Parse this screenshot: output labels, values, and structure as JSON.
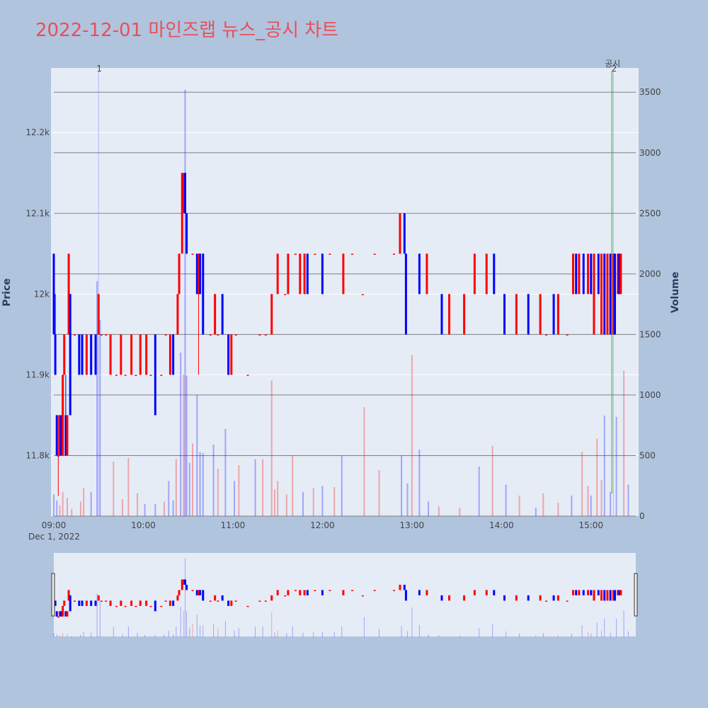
{
  "title": "2022-12-01 마인즈랩 뉴스_공시 차트",
  "colors": {
    "up": "#ff0000",
    "down": "#0000ff",
    "background": "#b0c4de",
    "plot_bg": "#e5ecf6",
    "title": "#e8505b",
    "disclosure_line": "#2ca02c"
  },
  "chart_data": {
    "type": "candlestick",
    "title": "2022-12-01 마인즈랩 뉴스_공시 차트",
    "xlabel": "",
    "ylabel": "Price",
    "y2label": "Volume",
    "x_range": [
      "09:00",
      "15:30"
    ],
    "x_ticks": [
      "09:00",
      "10:00",
      "11:00",
      "12:00",
      "13:00",
      "14:00",
      "15:00"
    ],
    "x_date_label": "Dec 1, 2022",
    "price_ticks": [
      "11.8k",
      "11.9k",
      "12k",
      "12.1k",
      "12.2k"
    ],
    "price_range": [
      11725,
      12280
    ],
    "volume_ticks": [
      "0",
      "500",
      "1000",
      "1500",
      "2000",
      "2500",
      "3000",
      "3500"
    ],
    "volume_range": [
      0,
      3700
    ],
    "annotations": [
      {
        "label": "1",
        "time": "09:30"
      },
      {
        "label": "2",
        "time": "15:15"
      },
      {
        "label": "공시",
        "time": "15:14"
      }
    ],
    "candles": [
      [
        "09:00",
        12050,
        12050,
        11950,
        11950
      ],
      [
        "09:01",
        11950,
        12000,
        11900,
        11900
      ],
      [
        "09:02",
        11850,
        11850,
        11800,
        11800
      ],
      [
        "09:03",
        11800,
        11850,
        11750,
        11800
      ],
      [
        "09:04",
        11800,
        11850,
        11800,
        11850
      ],
      [
        "09:05",
        11850,
        11850,
        11800,
        11800
      ],
      [
        "09:06",
        11800,
        11900,
        11800,
        11900
      ],
      [
        "09:07",
        11900,
        11950,
        11900,
        11950
      ],
      [
        "09:08",
        11850,
        11900,
        11800,
        11800
      ],
      [
        "09:09",
        11800,
        11850,
        11800,
        11850
      ],
      [
        "09:10",
        11950,
        12050,
        11950,
        12050
      ],
      [
        "09:11",
        12000,
        12000,
        11850,
        11850
      ],
      [
        "09:14",
        11950,
        11950,
        11950,
        11950
      ],
      [
        "09:17",
        11950,
        11950,
        11900,
        11900
      ],
      [
        "09:19",
        11950,
        11950,
        11900,
        11900
      ],
      [
        "09:22",
        11900,
        11950,
        11900,
        11950
      ],
      [
        "09:25",
        11950,
        11950,
        11900,
        11900
      ],
      [
        "09:28",
        11950,
        11950,
        11900,
        11900
      ],
      [
        "09:30",
        11950,
        12000,
        11950,
        12000
      ],
      [
        "09:32",
        11950,
        11950,
        11950,
        11950
      ],
      [
        "09:35",
        11950,
        11950,
        11950,
        11950
      ],
      [
        "09:38",
        11900,
        11950,
        11900,
        11950
      ],
      [
        "09:42",
        11900,
        11900,
        11900,
        11900
      ],
      [
        "09:45",
        11900,
        11950,
        11900,
        11950
      ],
      [
        "09:48",
        11900,
        11900,
        11900,
        11900
      ],
      [
        "09:52",
        11900,
        11950,
        11900,
        11950
      ],
      [
        "09:55",
        11900,
        11900,
        11900,
        11900
      ],
      [
        "09:58",
        11900,
        11950,
        11900,
        11950
      ],
      [
        "10:02",
        11900,
        11950,
        11900,
        11950
      ],
      [
        "10:05",
        11900,
        11900,
        11900,
        11900
      ],
      [
        "10:08",
        11950,
        11950,
        11850,
        11850
      ],
      [
        "10:12",
        11900,
        11900,
        11900,
        11900
      ],
      [
        "10:15",
        11950,
        11950,
        11950,
        11950
      ],
      [
        "10:18",
        11900,
        11950,
        11900,
        11950
      ],
      [
        "10:20",
        11950,
        11950,
        11900,
        11900
      ],
      [
        "10:23",
        11950,
        12000,
        11950,
        12000
      ],
      [
        "10:24",
        12000,
        12050,
        12000,
        12050
      ],
      [
        "10:26",
        12050,
        12150,
        12050,
        12150
      ],
      [
        "10:27",
        12100,
        12150,
        12100,
        12150
      ],
      [
        "10:28",
        12150,
        12150,
        12100,
        12100
      ],
      [
        "10:29",
        12100,
        12100,
        12050,
        12050
      ],
      [
        "10:33",
        12050,
        12050,
        12050,
        12050
      ],
      [
        "10:36",
        12050,
        12050,
        12000,
        12000
      ],
      [
        "10:37",
        12000,
        12050,
        11900,
        12050
      ],
      [
        "10:38",
        12050,
        12050,
        12000,
        12000
      ],
      [
        "10:40",
        12050,
        12050,
        11950,
        11950
      ],
      [
        "10:45",
        11950,
        11950,
        11950,
        11950
      ],
      [
        "10:48",
        11950,
        12000,
        11950,
        12000
      ],
      [
        "10:50",
        11950,
        11950,
        11950,
        11950
      ],
      [
        "10:53",
        12000,
        12000,
        11950,
        11950
      ],
      [
        "10:57",
        11950,
        11950,
        11900,
        11900
      ],
      [
        "10:59",
        11900,
        11950,
        11900,
        11950
      ],
      [
        "11:02",
        11950,
        11950,
        11950,
        11950
      ],
      [
        "11:10",
        11900,
        11900,
        11900,
        11900
      ],
      [
        "11:18",
        11950,
        11950,
        11950,
        11950
      ],
      [
        "11:22",
        11950,
        11950,
        11950,
        11950
      ],
      [
        "11:26",
        11950,
        12000,
        11950,
        12000
      ],
      [
        "11:30",
        12000,
        12050,
        12000,
        12050
      ],
      [
        "11:35",
        12000,
        12000,
        12000,
        12000
      ],
      [
        "11:37",
        12000,
        12050,
        12000,
        12050
      ],
      [
        "11:42",
        12050,
        12050,
        12050,
        12050
      ],
      [
        "11:45",
        12000,
        12050,
        12000,
        12050
      ],
      [
        "11:48",
        12000,
        12050,
        12000,
        12050
      ],
      [
        "11:50",
        12050,
        12050,
        12000,
        12000
      ],
      [
        "11:55",
        12050,
        12050,
        12050,
        12050
      ],
      [
        "12:00",
        12050,
        12050,
        12000,
        12000
      ],
      [
        "12:05",
        12050,
        12050,
        12050,
        12050
      ],
      [
        "12:14",
        12000,
        12050,
        12000,
        12050
      ],
      [
        "12:20",
        12050,
        12050,
        12050,
        12050
      ],
      [
        "12:27",
        12000,
        12000,
        12000,
        12000
      ],
      [
        "12:35",
        12050,
        12050,
        12050,
        12050
      ],
      [
        "12:48",
        12050,
        12050,
        12050,
        12050
      ],
      [
        "12:52",
        12050,
        12100,
        12050,
        12100
      ],
      [
        "12:55",
        12100,
        12100,
        12050,
        12050
      ],
      [
        "12:56",
        12050,
        12050,
        11950,
        11950
      ],
      [
        "13:05",
        12050,
        12050,
        12000,
        12000
      ],
      [
        "13:10",
        12000,
        12050,
        12000,
        12050
      ],
      [
        "13:20",
        12000,
        12000,
        11950,
        11950
      ],
      [
        "13:25",
        11950,
        12000,
        11950,
        12000
      ],
      [
        "13:35",
        11950,
        12000,
        11950,
        12000
      ],
      [
        "13:42",
        12000,
        12050,
        12000,
        12050
      ],
      [
        "13:50",
        12000,
        12050,
        12000,
        12050
      ],
      [
        "13:55",
        12050,
        12050,
        12000,
        12000
      ],
      [
        "14:02",
        12000,
        12000,
        11950,
        11950
      ],
      [
        "14:10",
        11950,
        12000,
        11950,
        12000
      ],
      [
        "14:18",
        12000,
        12000,
        11950,
        11950
      ],
      [
        "14:26",
        11950,
        12000,
        11950,
        12000
      ],
      [
        "14:30",
        11950,
        11950,
        11950,
        11950
      ],
      [
        "14:35",
        12000,
        12000,
        11950,
        11950
      ],
      [
        "14:38",
        11950,
        12000,
        11950,
        12000
      ],
      [
        "14:44",
        11950,
        11950,
        11950,
        11950
      ],
      [
        "14:48",
        12000,
        12050,
        12000,
        12050
      ],
      [
        "14:50",
        12050,
        12050,
        12000,
        12000
      ],
      [
        "14:52",
        12000,
        12050,
        12000,
        12050
      ],
      [
        "14:55",
        12050,
        12050,
        12000,
        12000
      ],
      [
        "14:58",
        12000,
        12050,
        12000,
        12050
      ],
      [
        "15:00",
        12050,
        12050,
        12000,
        12000
      ],
      [
        "15:02",
        11950,
        12050,
        11950,
        12050
      ],
      [
        "15:05",
        12050,
        12050,
        12000,
        12000
      ],
      [
        "15:07",
        11950,
        12050,
        11950,
        12050
      ],
      [
        "15:09",
        12050,
        12050,
        11950,
        11950
      ],
      [
        "15:11",
        11950,
        12050,
        11950,
        12050
      ],
      [
        "15:13",
        12050,
        12050,
        11950,
        11950
      ],
      [
        "15:15",
        11950,
        12050,
        11950,
        12050
      ],
      [
        "15:16",
        12050,
        12050,
        11950,
        11950
      ],
      [
        "15:18",
        12000,
        12050,
        12000,
        12050
      ],
      [
        "15:19",
        12050,
        12050,
        12000,
        12000
      ],
      [
        "15:20",
        12000,
        12050,
        12000,
        12050
      ]
    ],
    "volumes": [
      [
        "09:00",
        180
      ],
      [
        "09:02",
        130
      ],
      [
        "09:04",
        90
      ],
      [
        "09:06",
        200
      ],
      [
        "09:09",
        150
      ],
      [
        "09:12",
        60
      ],
      [
        "09:18",
        120
      ],
      [
        "09:20",
        230
      ],
      [
        "09:25",
        200
      ],
      [
        "09:29",
        1940
      ],
      [
        "09:31",
        1620
      ],
      [
        "09:40",
        450
      ],
      [
        "09:46",
        140
      ],
      [
        "09:50",
        480
      ],
      [
        "09:56",
        190
      ],
      [
        "10:01",
        100
      ],
      [
        "10:08",
        100
      ],
      [
        "10:14",
        120
      ],
      [
        "10:17",
        290
      ],
      [
        "10:20",
        130
      ],
      [
        "10:22",
        470
      ],
      [
        "10:25",
        1350
      ],
      [
        "10:27",
        1170
      ],
      [
        "10:28",
        3520
      ],
      [
        "10:29",
        1160
      ],
      [
        "10:31",
        440
      ],
      [
        "10:33",
        600
      ],
      [
        "10:36",
        1000
      ],
      [
        "10:38",
        530
      ],
      [
        "10:40",
        520
      ],
      [
        "10:47",
        590
      ],
      [
        "10:50",
        390
      ],
      [
        "10:55",
        720
      ],
      [
        "11:01",
        290
      ],
      [
        "11:04",
        420
      ],
      [
        "11:15",
        470
      ],
      [
        "11:20",
        470
      ],
      [
        "11:26",
        1120
      ],
      [
        "11:28",
        220
      ],
      [
        "11:30",
        290
      ],
      [
        "11:36",
        180
      ],
      [
        "11:40",
        500
      ],
      [
        "11:47",
        200
      ],
      [
        "11:54",
        230
      ],
      [
        "12:00",
        250
      ],
      [
        "12:08",
        240
      ],
      [
        "12:13",
        500
      ],
      [
        "12:28",
        900
      ],
      [
        "12:38",
        380
      ],
      [
        "12:53",
        500
      ],
      [
        "12:57",
        270
      ],
      [
        "13:00",
        1330
      ],
      [
        "13:05",
        550
      ],
      [
        "13:11",
        120
      ],
      [
        "13:18",
        80
      ],
      [
        "13:32",
        70
      ],
      [
        "13:45",
        410
      ],
      [
        "13:54",
        580
      ],
      [
        "14:03",
        260
      ],
      [
        "14:12",
        170
      ],
      [
        "14:23",
        70
      ],
      [
        "14:28",
        190
      ],
      [
        "14:38",
        110
      ],
      [
        "14:47",
        170
      ],
      [
        "14:54",
        530
      ],
      [
        "14:58",
        250
      ],
      [
        "15:00",
        170
      ],
      [
        "15:04",
        640
      ],
      [
        "15:07",
        300
      ],
      [
        "15:09",
        830
      ],
      [
        "15:13",
        200
      ],
      [
        "15:17",
        820
      ],
      [
        "15:22",
        1200
      ],
      [
        "15:25",
        260
      ]
    ]
  }
}
